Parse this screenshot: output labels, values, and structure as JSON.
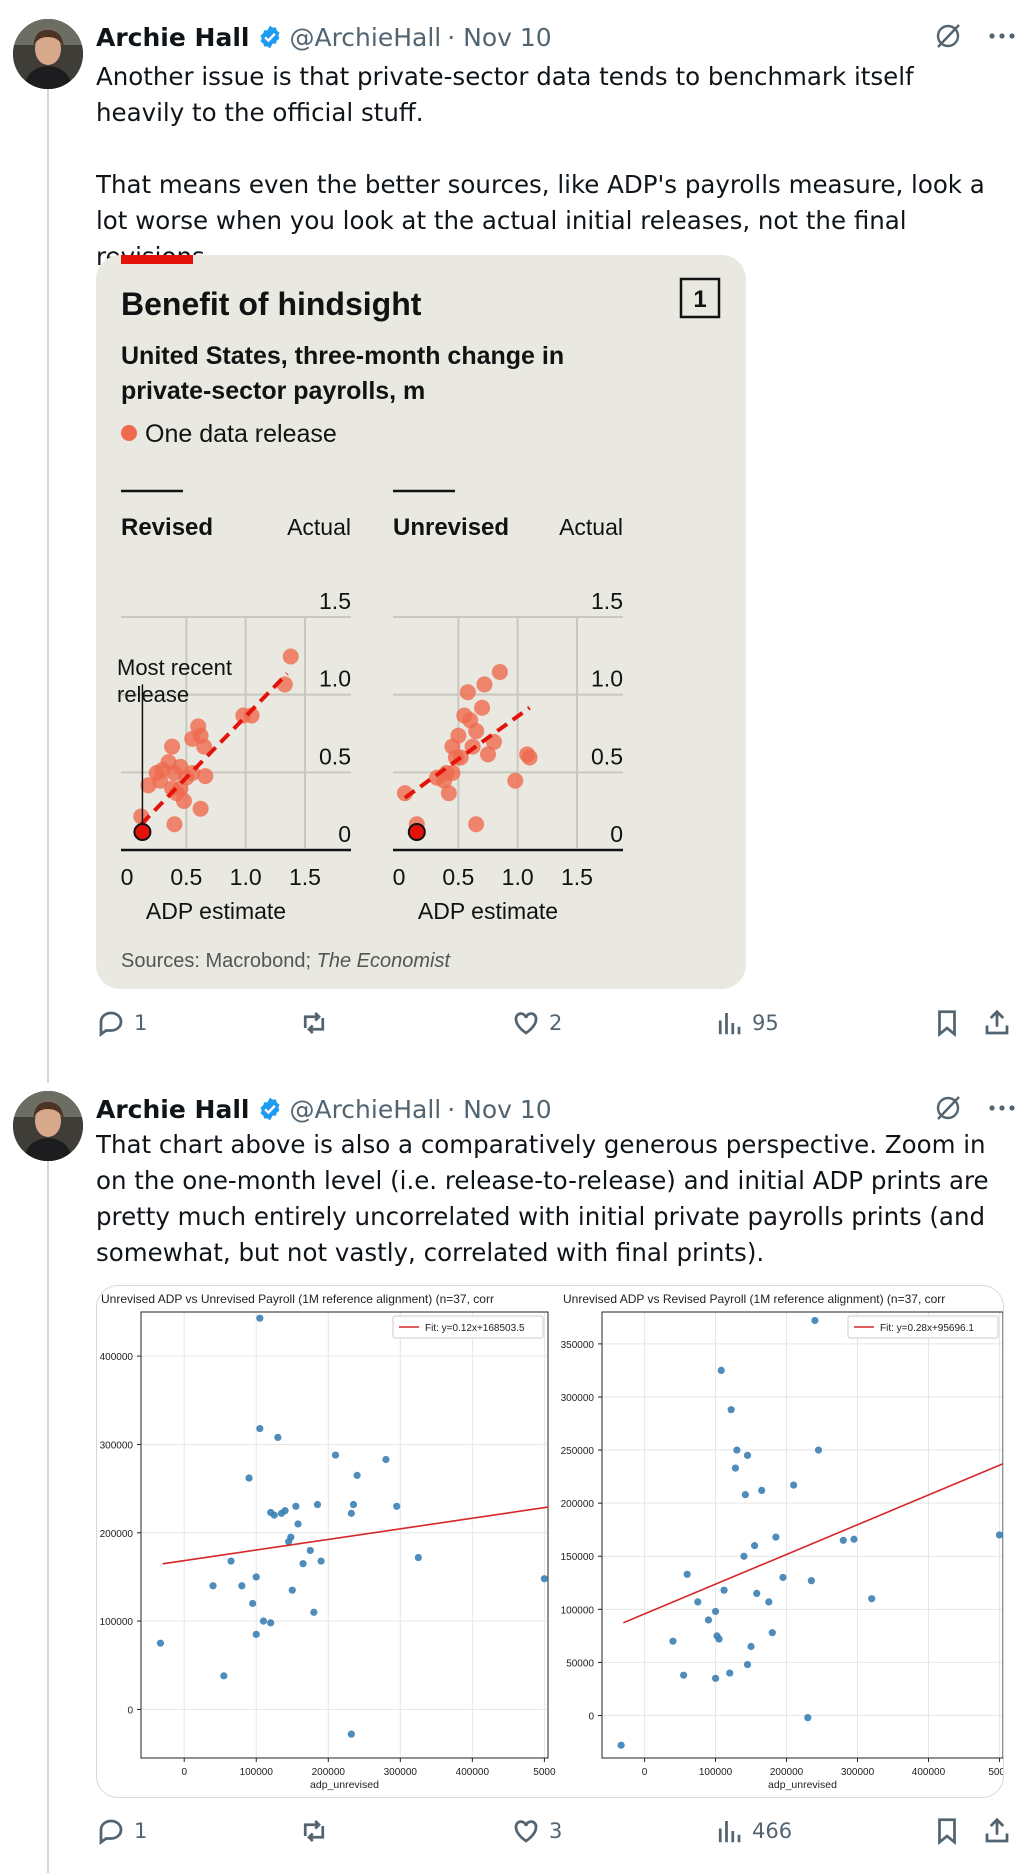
{
  "tweets": [
    {
      "author": {
        "name": "Archie Hall",
        "handle": "@ArchieHall",
        "date": "· Nov 10"
      },
      "text": [
        "Another issue is that private-sector data tends to benchmark itself heavily to the official stuff.",
        "That means even the better sources, like ADP's payrolls measure, look a lot worse when you look at the actual initial releases, not the final revisions."
      ],
      "actions": {
        "replies": "1",
        "reposts": "",
        "likes": "2",
        "views": "95"
      }
    },
    {
      "author": {
        "name": "Archie Hall",
        "handle": "@ArchieHall",
        "date": "· Nov 10"
      },
      "text": [
        "That chart above is also a comparatively generous perspective. Zoom in on the one-month level (i.e. release-to-release) and initial ADP prints are pretty much entirely uncorrelated with initial private payrolls prints (and somewhat, but not vastly, correlated with final prints)."
      ],
      "actions": {
        "replies": "1",
        "reposts": "",
        "likes": "3",
        "views": "466"
      }
    }
  ],
  "econ_chart": {
    "title": "Benefit of hindsight",
    "number": "1",
    "subtitle_line1": "United States, three-month change in",
    "subtitle_line2": "private-sector payrolls, m",
    "legend": "One data release",
    "annotation_line1": "Most recent",
    "annotation_line2": "release",
    "source_prefix": "Sources: Macrobond; ",
    "source_italic": "The Economist",
    "colors": {
      "background": "#e9e8e1",
      "points": "#ef6a4f",
      "accent": "#e3120b",
      "grid": "#c9c8be"
    }
  },
  "py_chart_labels": {
    "fit_prefix": "Fit: ",
    "xlabel": "adp_unrevised"
  },
  "chart_data": [
    {
      "type": "scatter",
      "title": "Revised",
      "xlabel": "ADP estimate",
      "ylabel": "Actual",
      "xlim": [
        0,
        2.0
      ],
      "ylim": [
        0,
        1.5
      ],
      "xticks": [
        "0",
        "0.5",
        "1.0",
        "1.5"
      ],
      "yticks": [
        "0",
        "0.5",
        "1.0",
        "1.5"
      ],
      "points": [
        [
          0.12,
          0.1
        ],
        [
          0.18,
          0.3
        ],
        [
          0.25,
          0.38
        ],
        [
          0.28,
          0.33
        ],
        [
          0.3,
          0.4
        ],
        [
          0.35,
          0.45
        ],
        [
          0.38,
          0.28
        ],
        [
          0.4,
          0.38
        ],
        [
          0.42,
          0.25
        ],
        [
          0.45,
          0.28
        ],
        [
          0.48,
          0.2
        ],
        [
          0.5,
          0.35
        ],
        [
          0.38,
          0.55
        ],
        [
          0.4,
          0.05
        ],
        [
          0.55,
          0.6
        ],
        [
          0.6,
          0.68
        ],
        [
          0.62,
          0.62
        ],
        [
          0.65,
          0.55
        ],
        [
          0.66,
          0.36
        ],
        [
          0.62,
          0.15
        ],
        [
          0.98,
          0.75
        ],
        [
          1.05,
          0.75
        ],
        [
          1.33,
          0.95
        ],
        [
          1.38,
          1.13
        ],
        [
          0.45,
          0.42
        ],
        [
          0.55,
          0.38
        ]
      ],
      "highlight": [
        0.13,
        0.0
      ],
      "trendline": [
        [
          0.12,
          0.05
        ],
        [
          1.35,
          1.02
        ]
      ]
    },
    {
      "type": "scatter",
      "title": "Unrevised",
      "xlabel": "ADP estimate",
      "ylabel": "Actual",
      "xlim": [
        0,
        2.0
      ],
      "ylim": [
        0,
        1.5
      ],
      "xticks": [
        "0",
        "0.5",
        "1.0",
        "1.5"
      ],
      "yticks": [
        "0",
        "0.5",
        "1.0",
        "1.5"
      ],
      "points": [
        [
          0.05,
          0.25
        ],
        [
          0.15,
          0.05
        ],
        [
          0.32,
          0.35
        ],
        [
          0.38,
          0.33
        ],
        [
          0.4,
          0.38
        ],
        [
          0.42,
          0.25
        ],
        [
          0.45,
          0.55
        ],
        [
          0.45,
          0.38
        ],
        [
          0.48,
          0.48
        ],
        [
          0.5,
          0.62
        ],
        [
          0.52,
          0.48
        ],
        [
          0.55,
          0.75
        ],
        [
          0.58,
          0.9
        ],
        [
          0.6,
          0.72
        ],
        [
          0.62,
          0.55
        ],
        [
          0.65,
          0.05
        ],
        [
          0.65,
          0.65
        ],
        [
          0.7,
          0.8
        ],
        [
          0.72,
          0.95
        ],
        [
          0.75,
          0.5
        ],
        [
          0.8,
          0.58
        ],
        [
          0.85,
          1.03
        ],
        [
          0.98,
          0.33
        ],
        [
          1.08,
          0.5
        ],
        [
          1.1,
          0.48
        ]
      ],
      "highlight": [
        0.15,
        0.0
      ],
      "trendline": [
        [
          0.05,
          0.22
        ],
        [
          1.1,
          0.8
        ]
      ]
    },
    {
      "type": "scatter",
      "title": "Unrevised ADP vs Unrevised Payroll (1M reference alignment) (n=37, corr",
      "xlabel": "adp_unrevised",
      "ylabel": "",
      "xlim": [
        -60000,
        505000
      ],
      "ylim": [
        -55000,
        450000
      ],
      "xticks": [
        "0",
        "100000",
        "200000",
        "300000",
        "400000",
        "5000"
      ],
      "yticks": [
        "0",
        "100000",
        "200000",
        "300000",
        "400000"
      ],
      "fit_label": "Fit: y=0.12x+168503.5",
      "fit": {
        "slope": 0.12,
        "intercept": 168503.5
      },
      "points": [
        [
          -33000,
          75000
        ],
        [
          40000,
          140000
        ],
        [
          55000,
          38000
        ],
        [
          65000,
          168000
        ],
        [
          80000,
          140000
        ],
        [
          90000,
          262000
        ],
        [
          95000,
          120000
        ],
        [
          100000,
          150000
        ],
        [
          100000,
          85000
        ],
        [
          105000,
          443000
        ],
        [
          105000,
          318000
        ],
        [
          110000,
          100000
        ],
        [
          120000,
          98000
        ],
        [
          125000,
          220000
        ],
        [
          130000,
          308000
        ],
        [
          135000,
          222000
        ],
        [
          140000,
          225000
        ],
        [
          145000,
          190000
        ],
        [
          148000,
          195000
        ],
        [
          150000,
          135000
        ],
        [
          155000,
          230000
        ],
        [
          158000,
          210000
        ],
        [
          165000,
          165000
        ],
        [
          175000,
          180000
        ],
        [
          180000,
          110000
        ],
        [
          185000,
          232000
        ],
        [
          190000,
          168000
        ],
        [
          210000,
          288000
        ],
        [
          232000,
          222000
        ],
        [
          232000,
          -28000
        ],
        [
          235000,
          232000
        ],
        [
          240000,
          265000
        ],
        [
          280000,
          283000
        ],
        [
          295000,
          230000
        ],
        [
          325000,
          172000
        ],
        [
          500000,
          148000
        ],
        [
          120000,
          223000
        ]
      ]
    },
    {
      "type": "scatter",
      "title": "Unrevised ADP vs Revised Payroll (1M reference alignment) (n=37, corr",
      "xlabel": "adp_unrevised",
      "ylabel": "",
      "xlim": [
        -60000,
        505000
      ],
      "ylim": [
        -40000,
        380000
      ],
      "xticks": [
        "0",
        "100000",
        "200000",
        "300000",
        "400000",
        "5000"
      ],
      "yticks": [
        "0",
        "50000",
        "100000",
        "150000",
        "200000",
        "250000",
        "300000",
        "350000"
      ],
      "fit_label": "Fit: y=0.28x+95696.1",
      "fit": {
        "slope": 0.28,
        "intercept": 95696.1
      },
      "points": [
        [
          -33000,
          -28000
        ],
        [
          40000,
          70000
        ],
        [
          55000,
          38000
        ],
        [
          60000,
          133000
        ],
        [
          75000,
          107000
        ],
        [
          90000,
          90000
        ],
        [
          100000,
          35000
        ],
        [
          100000,
          98000
        ],
        [
          102000,
          75000
        ],
        [
          105000,
          72000
        ],
        [
          108000,
          325000
        ],
        [
          112000,
          118000
        ],
        [
          120000,
          40000
        ],
        [
          122000,
          288000
        ],
        [
          128000,
          233000
        ],
        [
          130000,
          250000
        ],
        [
          140000,
          150000
        ],
        [
          142000,
          208000
        ],
        [
          145000,
          245000
        ],
        [
          145000,
          48000
        ],
        [
          150000,
          65000
        ],
        [
          155000,
          160000
        ],
        [
          158000,
          115000
        ],
        [
          165000,
          212000
        ],
        [
          175000,
          107000
        ],
        [
          180000,
          78000
        ],
        [
          185000,
          168000
        ],
        [
          195000,
          130000
        ],
        [
          210000,
          217000
        ],
        [
          230000,
          -2000
        ],
        [
          235000,
          127000
        ],
        [
          240000,
          372000
        ],
        [
          245000,
          250000
        ],
        [
          280000,
          165000
        ],
        [
          295000,
          166000
        ],
        [
          320000,
          110000
        ],
        [
          500000,
          170000
        ]
      ]
    }
  ]
}
